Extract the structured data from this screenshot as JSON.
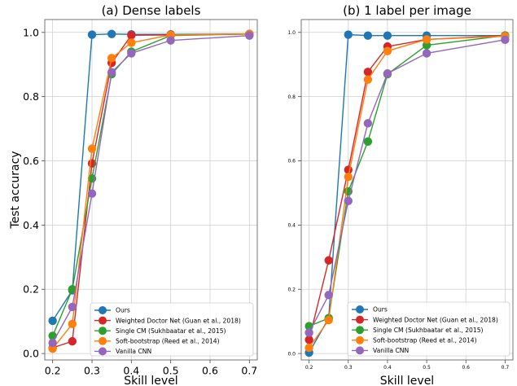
{
  "chart_data": [
    {
      "type": "line",
      "title": "(a) Dense labels",
      "xlabel": "Skill level",
      "ylabel": "Test accuracy",
      "xlim": [
        0.18,
        0.72
      ],
      "ylim": [
        -0.02,
        1.04
      ],
      "xticks": [
        "0.2",
        "0.3",
        "0.4",
        "0.5",
        "0.6",
        "0.7"
      ],
      "yticks": [
        "0.0",
        "0.2",
        "0.4",
        "0.6",
        "0.8",
        "1.0"
      ],
      "grid": true,
      "legend_position": "lower-right",
      "x": [
        0.2,
        0.25,
        0.3,
        0.35,
        0.4,
        0.5,
        0.7
      ],
      "series": [
        {
          "name": "Ours",
          "color": "#1f77b4",
          "values": [
            0.102,
            0.197,
            0.993,
            0.995,
            0.994,
            0.994,
            0.995
          ]
        },
        {
          "name": "Weighted Doctor Net (Guan et al., 2018)",
          "color": "#d62728",
          "values": [
            0.018,
            0.038,
            0.592,
            0.905,
            0.991,
            0.992,
            0.995
          ]
        },
        {
          "name": "Single CM (Sukhbaatar et al., 2015)",
          "color": "#2ca02c",
          "values": [
            0.055,
            0.2,
            0.545,
            0.87,
            0.94,
            0.99,
            0.995
          ]
        },
        {
          "name": "Soft-bootstrap (Reed et al., 2014)",
          "color": "#ff7f0e",
          "values": [
            0.015,
            0.092,
            0.638,
            0.92,
            0.968,
            0.992,
            0.995
          ]
        },
        {
          "name": "Vanilla CNN",
          "color": "#9467bd",
          "values": [
            0.033,
            0.145,
            0.498,
            0.876,
            0.935,
            0.975,
            0.99
          ]
        }
      ]
    },
    {
      "type": "line",
      "title": "(b) 1 label per image",
      "xlabel": "Skill level",
      "ylabel": "",
      "xlim": [
        0.18,
        0.72
      ],
      "ylim": [
        -0.02,
        1.04
      ],
      "xticks": [
        "0.2",
        "0.3",
        "0.4",
        "0.5",
        "0.6",
        "0.7"
      ],
      "yticks": [
        "0.0",
        "0.2",
        "0.4",
        "0.6",
        "0.8",
        "1.0"
      ],
      "grid": true,
      "legend_position": "lower-right",
      "x": [
        0.2,
        0.25,
        0.3,
        0.35,
        0.4,
        0.5,
        0.7
      ],
      "series": [
        {
          "name": "Ours",
          "color": "#1f77b4",
          "values": [
            0.003,
            0.11,
            0.993,
            0.99,
            0.99,
            0.99,
            0.99
          ]
        },
        {
          "name": "Weighted Doctor Net (Guan et al., 2018)",
          "color": "#d62728",
          "values": [
            0.043,
            0.29,
            0.572,
            0.877,
            0.956,
            0.978,
            0.99
          ]
        },
        {
          "name": "Single CM (Sukhbaatar et al., 2015)",
          "color": "#2ca02c",
          "values": [
            0.085,
            0.11,
            0.505,
            0.66,
            0.87,
            0.96,
            0.99
          ]
        },
        {
          "name": "Soft-bootstrap (Reed et al., 2014)",
          "color": "#ff7f0e",
          "values": [
            0.018,
            0.104,
            0.55,
            0.853,
            0.942,
            0.978,
            0.988
          ]
        },
        {
          "name": "Vanilla CNN",
          "color": "#9467bd",
          "values": [
            0.065,
            0.182,
            0.475,
            0.717,
            0.872,
            0.935,
            0.977
          ]
        }
      ]
    }
  ]
}
